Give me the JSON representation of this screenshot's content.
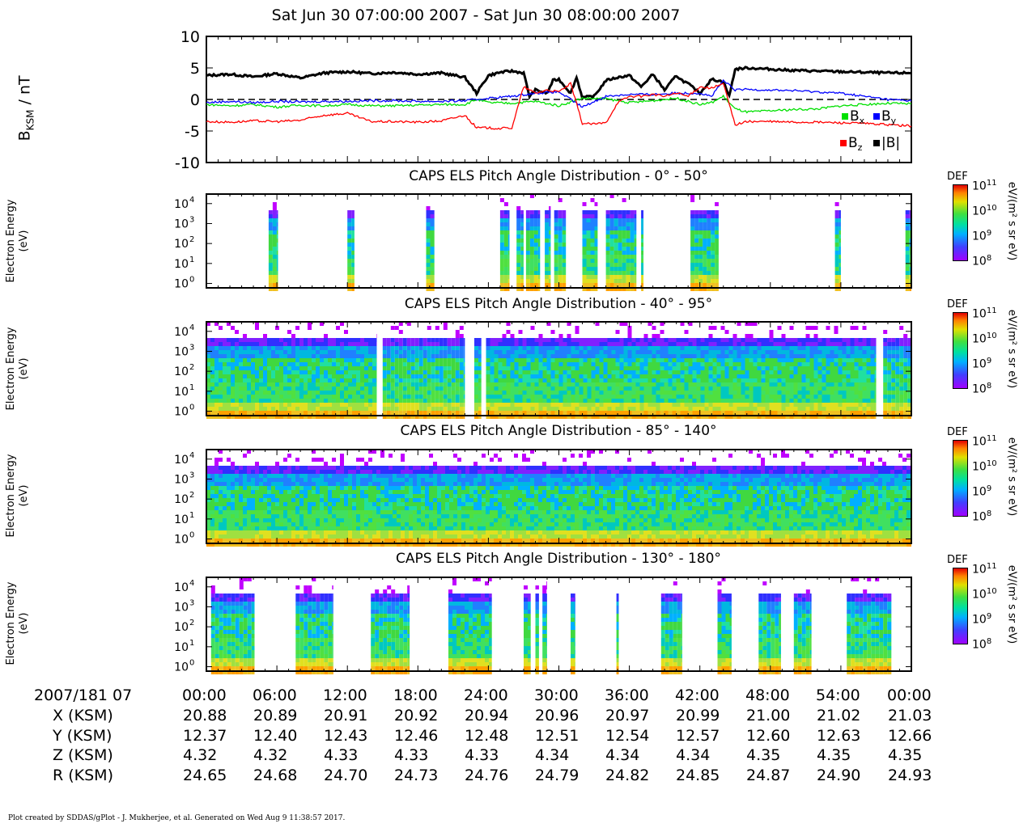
{
  "title": "Sat Jun 30 07:00:00 2007 - Sat Jun 30 08:00:00 2007",
  "chart_data": [
    {
      "type": "line",
      "ylabel_main": "B",
      "ylabel_sub": "KSM",
      "ylabel_unit": " / nT",
      "ylim": [
        -10,
        10
      ],
      "yticks": [
        "10",
        "5",
        "0",
        "-5",
        "-10"
      ],
      "xlim": [
        0,
        60
      ],
      "zero_line": "dashed",
      "legend": [
        {
          "name": "B",
          "sub": "x",
          "color": "#00e000"
        },
        {
          "name": "B",
          "sub": "y",
          "color": "#0000ff"
        },
        {
          "name": "B",
          "sub": "z",
          "color": "#ff0000"
        },
        {
          "name": "|B|",
          "sub": "",
          "color": "#000000"
        }
      ],
      "series": [
        {
          "name": "|B|",
          "color": "#000000",
          "x": [
            0,
            2,
            4,
            6,
            8,
            10,
            12,
            14,
            16,
            18,
            20,
            22,
            23,
            24,
            25,
            26,
            27,
            27.5,
            28,
            29,
            29.5,
            30,
            31,
            31.5,
            32,
            33,
            34,
            35,
            36,
            37,
            38,
            39,
            40,
            40.5,
            41,
            42,
            43,
            44,
            44.5,
            45,
            46,
            48,
            50,
            52,
            54,
            56,
            58,
            60
          ],
          "y": [
            3.8,
            4.0,
            3.6,
            4.1,
            3.4,
            4.2,
            4.4,
            4.1,
            4.3,
            4.0,
            4.2,
            3.5,
            1.0,
            3.8,
            4.3,
            4.5,
            4.2,
            0.5,
            1.5,
            1.0,
            3.0,
            3.2,
            1.0,
            3.5,
            0.3,
            0.5,
            3.0,
            3.5,
            3.8,
            2.0,
            4.0,
            1.5,
            3.8,
            3.0,
            2.5,
            1.0,
            3.2,
            2.8,
            0.5,
            4.8,
            5.0,
            4.8,
            4.6,
            4.5,
            4.4,
            4.3,
            4.2,
            4.2
          ]
        },
        {
          "name": "B_x",
          "color": "#00e000",
          "x": [
            0,
            2,
            4,
            6,
            8,
            10,
            12,
            14,
            16,
            18,
            20,
            22,
            23,
            24,
            26,
            28,
            30,
            32,
            34,
            36,
            38,
            40,
            42,
            43,
            44,
            45,
            46,
            48,
            50,
            52,
            54,
            56,
            58,
            60
          ],
          "y": [
            -0.8,
            -1.0,
            -0.8,
            -1.2,
            -0.9,
            -1.0,
            -0.8,
            -1.0,
            -1.0,
            -0.9,
            -0.8,
            -0.8,
            0.0,
            -0.5,
            -0.6,
            -0.3,
            -1.0,
            0.2,
            0.1,
            -0.5,
            -0.2,
            0.2,
            -0.8,
            -0.5,
            0.5,
            -1.5,
            -2.0,
            -1.8,
            -1.6,
            -1.5,
            -1.0,
            -0.8,
            -0.6,
            -0.7
          ]
        },
        {
          "name": "B_y",
          "color": "#0000ff",
          "x": [
            0,
            2,
            4,
            6,
            8,
            10,
            12,
            14,
            16,
            18,
            20,
            22,
            24,
            26,
            28,
            30,
            32,
            34,
            36,
            38,
            40,
            42,
            43,
            44,
            45,
            46,
            48,
            50,
            52,
            54,
            56,
            58,
            60
          ],
          "y": [
            -0.5,
            -0.3,
            -0.5,
            -0.3,
            -0.4,
            -0.3,
            -0.3,
            -0.2,
            -0.2,
            -0.3,
            -0.3,
            -0.2,
            0.2,
            0.5,
            1.0,
            1.2,
            -1.2,
            0.5,
            0.8,
            0.8,
            1.0,
            1.0,
            0.5,
            3.0,
            1.5,
            1.6,
            1.5,
            1.4,
            1.2,
            1.0,
            0.5,
            0.0,
            -0.2
          ]
        },
        {
          "name": "B_z",
          "color": "#ff0000",
          "x": [
            0,
            2,
            4,
            6,
            8,
            10,
            12,
            14,
            16,
            18,
            20,
            22,
            23,
            24,
            25,
            26,
            27,
            28,
            29,
            30,
            31,
            32,
            33,
            34,
            35,
            36,
            37,
            38,
            39,
            40,
            41,
            42,
            43,
            44,
            45,
            46,
            48,
            50,
            52,
            54,
            56,
            58,
            60
          ],
          "y": [
            -3.5,
            -3.6,
            -3.4,
            -3.5,
            -3.3,
            -2.5,
            -2.2,
            -3.5,
            -3.5,
            -3.6,
            -3.4,
            -2.5,
            -4.5,
            -4.5,
            -4.6,
            -4.5,
            2.0,
            1.0,
            1.5,
            1.2,
            2.5,
            -3.8,
            -3.9,
            -3.7,
            -0.5,
            0.5,
            0.5,
            0.8,
            0.5,
            1.0,
            0.5,
            2.0,
            1.8,
            2.5,
            -4.0,
            -3.5,
            -3.5,
            -3.6,
            -3.6,
            -3.7,
            -3.8,
            -4.0,
            -4.2
          ]
        }
      ]
    },
    {
      "type": "heatmap",
      "title": "CAPS ELS Pitch Angle Distribution - 0° - 50°",
      "ylabel": "Electron Energy",
      "yunit": "(eV)",
      "yscale": "log",
      "ylim": [
        0.6,
        30000
      ],
      "yticks": [
        1,
        10,
        100,
        1000,
        10000
      ],
      "xlim": [
        0,
        60
      ],
      "colorbar": {
        "label": "DEF",
        "unit": "eV/(m² s sr eV)",
        "range": [
          100000000.0,
          100000000000.0
        ],
        "ticks": [
          "10",
          "10",
          "10",
          "10"
        ],
        "tick_exps": [
          "11",
          "10",
          "9",
          "8"
        ]
      },
      "active_intervals_min": [
        [
          5.3,
          6.1
        ],
        [
          12.0,
          12.6
        ],
        [
          18.7,
          19.4
        ],
        [
          25.0,
          25.8
        ],
        [
          26.4,
          27.0
        ],
        [
          27.2,
          28.4
        ],
        [
          28.8,
          29.3
        ],
        [
          29.6,
          30.6
        ],
        [
          32.0,
          33.3
        ],
        [
          34.0,
          36.6
        ],
        [
          37.0,
          37.2
        ],
        [
          41.2,
          43.6
        ],
        [
          53.5,
          54.0
        ],
        [
          59.5,
          60.0
        ]
      ]
    },
    {
      "type": "heatmap",
      "title": "CAPS ELS Pitch Angle Distribution - 40° - 95°",
      "ylabel": "Electron Energy",
      "yunit": "(eV)",
      "yscale": "log",
      "ylim": [
        0.6,
        30000
      ],
      "yticks": [
        1,
        10,
        100,
        1000,
        10000
      ],
      "xlim": [
        0,
        60
      ],
      "colorbar": {
        "label": "DEF",
        "unit": "eV/(m² s sr eV)",
        "range": [
          100000000.0,
          100000000000.0
        ],
        "ticks": [
          "10",
          "10",
          "10",
          "10"
        ],
        "tick_exps": [
          "11",
          "10",
          "9",
          "8"
        ]
      },
      "active_intervals_min": [
        [
          0.0,
          14.5
        ],
        [
          15.0,
          22.0
        ],
        [
          22.8,
          23.4
        ],
        [
          23.8,
          57.0
        ],
        [
          57.6,
          60.0
        ]
      ]
    },
    {
      "type": "heatmap",
      "title": "CAPS ELS Pitch Angle Distribution - 85° - 140°",
      "ylabel": "Electron Energy",
      "yunit": "(eV)",
      "yscale": "log",
      "ylim": [
        0.6,
        30000
      ],
      "yticks": [
        1,
        10,
        100,
        1000,
        10000
      ],
      "xlim": [
        0,
        60
      ],
      "colorbar": {
        "label": "DEF",
        "unit": "eV/(m² s sr eV)",
        "range": [
          100000000.0,
          100000000000.0
        ],
        "ticks": [
          "10",
          "10",
          "10",
          "10"
        ],
        "tick_exps": [
          "11",
          "10",
          "9",
          "8"
        ]
      },
      "active_intervals_min": [
        [
          0.0,
          60.0
        ]
      ]
    },
    {
      "type": "heatmap",
      "title": "CAPS ELS Pitch Angle Distribution - 130° - 180°",
      "ylabel": "Electron Energy",
      "yunit": "(eV)",
      "yscale": "log",
      "ylim": [
        0.6,
        30000
      ],
      "yticks": [
        1,
        10,
        100,
        1000,
        10000
      ],
      "xlim": [
        0,
        60
      ],
      "colorbar": {
        "label": "DEF",
        "unit": "eV/(m² s sr eV)",
        "range": [
          100000000.0,
          100000000000.0
        ],
        "ticks": [
          "10",
          "10",
          "10",
          "10"
        ],
        "tick_exps": [
          "11",
          "10",
          "9",
          "8"
        ]
      },
      "active_intervals_min": [
        [
          0.4,
          4.1
        ],
        [
          7.6,
          10.8
        ],
        [
          14.0,
          17.3
        ],
        [
          20.6,
          24.3
        ],
        [
          27.0,
          27.6
        ],
        [
          28.0,
          28.3
        ],
        [
          28.6,
          29.0
        ],
        [
          31.0,
          31.4
        ],
        [
          34.9,
          35.1
        ],
        [
          38.7,
          40.5
        ],
        [
          43.5,
          44.7
        ],
        [
          47.0,
          48.9
        ],
        [
          50.0,
          51.5
        ],
        [
          54.5,
          58.3
        ]
      ]
    }
  ],
  "ephemeris": {
    "header_label": "2007/181 07",
    "times": [
      "00:00",
      "06:00",
      "12:00",
      "18:00",
      "24:00",
      "30:00",
      "36:00",
      "42:00",
      "48:00",
      "54:00",
      "00:00"
    ],
    "rows": [
      {
        "label": "X (KSM)",
        "values": [
          "20.88",
          "20.89",
          "20.91",
          "20.92",
          "20.94",
          "20.96",
          "20.97",
          "20.99",
          "21.00",
          "21.02",
          "21.03"
        ]
      },
      {
        "label": "Y (KSM)",
        "values": [
          "12.37",
          "12.40",
          "12.43",
          "12.46",
          "12.48",
          "12.51",
          "12.54",
          "12.57",
          "12.60",
          "12.63",
          "12.66"
        ]
      },
      {
        "label": "Z (KSM)",
        "values": [
          "4.32",
          "4.32",
          "4.33",
          "4.33",
          "4.33",
          "4.34",
          "4.34",
          "4.34",
          "4.35",
          "4.35",
          "4.35"
        ]
      },
      {
        "label": "R (KSM)",
        "values": [
          "24.65",
          "24.68",
          "24.70",
          "24.73",
          "24.76",
          "24.79",
          "24.82",
          "24.85",
          "24.87",
          "24.90",
          "24.93"
        ]
      }
    ]
  },
  "footer": "Plot created by SDDAS/gPlot - J. Mukherjee, et al.  Generated on Wed Aug 9 11:38:57 2017."
}
